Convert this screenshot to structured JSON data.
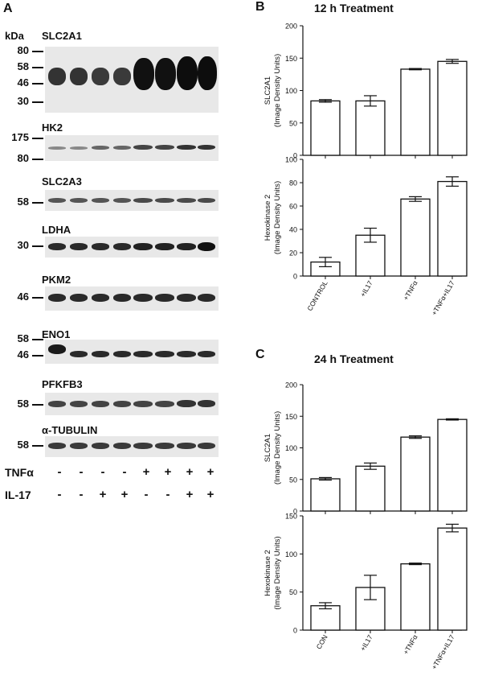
{
  "panel_a": {
    "letter": "A",
    "kda_label": "kDa",
    "blots": [
      {
        "name": "SLC2A1",
        "markers": [
          "80",
          "58",
          "46",
          "30"
        ]
      },
      {
        "name": "HK2",
        "markers": [
          "175",
          "80"
        ]
      },
      {
        "name": "SLC2A3",
        "markers": [
          "58"
        ]
      },
      {
        "name": "LDHA",
        "markers": [
          "30"
        ]
      },
      {
        "name": "PKM2",
        "markers": [
          "46"
        ]
      },
      {
        "name": "ENO1",
        "markers": [
          "58",
          "46"
        ]
      },
      {
        "name": "PFKFB3",
        "markers": [
          "58"
        ]
      },
      {
        "name": "α-TUBULIN",
        "markers": [
          "58"
        ]
      }
    ],
    "treatments": [
      {
        "label": "TNFα",
        "signs": [
          "-",
          "-",
          "-",
          "-",
          "+",
          "+",
          "+",
          "+"
        ]
      },
      {
        "label": "IL-17",
        "signs": [
          "-",
          "-",
          "+",
          "+",
          "-",
          "-",
          "+",
          "+"
        ]
      }
    ]
  },
  "panel_b": {
    "letter": "B",
    "title": "12 h Treatment"
  },
  "panel_c": {
    "letter": "C",
    "title": "24 h Treatment"
  },
  "chart_data": [
    {
      "type": "bar",
      "panel": "B",
      "title": "12 h Treatment",
      "ylabel_lines": [
        "SLC2A1",
        "(Image Density Units)"
      ],
      "ylim": [
        0,
        200
      ],
      "yticks": [
        0,
        50,
        100,
        150,
        200
      ],
      "categories": [
        "",
        "",
        "",
        ""
      ],
      "values": [
        84,
        84,
        133,
        145
      ],
      "errors": [
        2,
        8,
        1,
        3
      ]
    },
    {
      "type": "bar",
      "panel": "B",
      "title": "",
      "ylabel_lines": [
        "Hexokinase 2",
        "(Image Density Units)"
      ],
      "ylim": [
        0,
        100
      ],
      "yticks": [
        0,
        20,
        40,
        60,
        80,
        100
      ],
      "categories": [
        "CONTROL",
        "+IL17",
        "+TNFα",
        "+TNFα+IL17"
      ],
      "values": [
        12,
        35,
        66,
        81
      ],
      "errors": [
        4,
        6,
        2,
        4
      ]
    },
    {
      "type": "bar",
      "panel": "C",
      "title": "24 h Treatment",
      "ylabel_lines": [
        "SLC2A1",
        "(Image Density Units)"
      ],
      "ylim": [
        0,
        200
      ],
      "yticks": [
        0,
        50,
        100,
        150,
        200
      ],
      "categories": [
        "",
        "",
        "",
        ""
      ],
      "values": [
        51,
        71,
        117,
        145
      ],
      "errors": [
        2,
        5,
        2,
        1
      ]
    },
    {
      "type": "bar",
      "panel": "C",
      "title": "",
      "ylabel_lines": [
        "Hexokinase 2",
        "(Image Density Units)"
      ],
      "ylim": [
        0,
        150
      ],
      "yticks": [
        0,
        50,
        100,
        150
      ],
      "categories": [
        "CON",
        "+IL17",
        "+TNFα",
        "+TNFα+IL17"
      ],
      "values": [
        32,
        56,
        87,
        134
      ],
      "errors": [
        4,
        16,
        1,
        5
      ]
    }
  ]
}
